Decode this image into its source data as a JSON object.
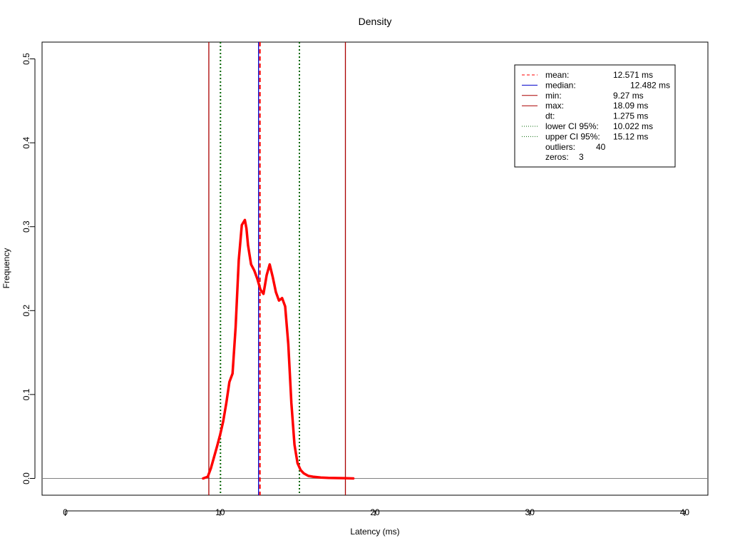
{
  "chart_data": {
    "type": "line",
    "title": "Density",
    "xlabel": "Latency (ms)",
    "ylabel": "Frequency",
    "xlim": [
      -1.5,
      41.5
    ],
    "ylim": [
      -0.02,
      0.52
    ],
    "xticks": [
      0,
      10,
      20,
      30,
      40
    ],
    "xtick_labels": [
      "0",
      "10",
      "20",
      "30",
      "40"
    ],
    "yticks": [
      0.0,
      0.1,
      0.2,
      0.3,
      0.4,
      0.5
    ],
    "ytick_labels": [
      "0.0",
      "0.1",
      "0.2",
      "0.3",
      "0.4",
      "0.5"
    ],
    "grid": false,
    "legend_position": "top-right",
    "colors": {
      "density": "#ff0000",
      "mean": "#ff0000",
      "median": "#0000cc",
      "minmax": "#aa0000",
      "ci": "#006400",
      "baseline": "#808080"
    },
    "series": [
      {
        "x": [
          8.9,
          9.2,
          9.4,
          9.6,
          9.8,
          10.0,
          10.2,
          10.4,
          10.6,
          10.8,
          11.0,
          11.2,
          11.4,
          11.6,
          11.7,
          11.8,
          12.0,
          12.2,
          12.4,
          12.6,
          12.8,
          13.0,
          13.2,
          13.4,
          13.6,
          13.8,
          14.0,
          14.2,
          14.4,
          14.6,
          14.8,
          15.0,
          15.2,
          15.4,
          15.7,
          16.0,
          16.5,
          17.0,
          18.0,
          18.6
        ],
        "values": [
          0.0,
          0.002,
          0.012,
          0.025,
          0.038,
          0.052,
          0.068,
          0.09,
          0.115,
          0.125,
          0.18,
          0.26,
          0.302,
          0.308,
          0.298,
          0.278,
          0.255,
          0.248,
          0.238,
          0.225,
          0.22,
          0.242,
          0.255,
          0.24,
          0.222,
          0.212,
          0.215,
          0.205,
          0.16,
          0.09,
          0.04,
          0.018,
          0.01,
          0.006,
          0.003,
          0.002,
          0.001,
          0.0006,
          0.0003,
          0.0
        ]
      }
    ],
    "vlines": [
      {
        "name": "mean",
        "x": 12.571,
        "style": "dashed",
        "color": "#ff0000"
      },
      {
        "name": "median",
        "x": 12.482,
        "style": "solid",
        "color": "#0000cc"
      },
      {
        "name": "min",
        "x": 9.27,
        "style": "solid",
        "color": "#aa0000"
      },
      {
        "name": "max",
        "x": 18.09,
        "style": "solid",
        "color": "#aa0000"
      },
      {
        "name": "lower-ci",
        "x": 10.022,
        "style": "dotted",
        "color": "#006400"
      },
      {
        "name": "upper-ci",
        "x": 15.12,
        "style": "dotted",
        "color": "#006400"
      }
    ],
    "legend": [
      {
        "label": "mean:",
        "value": "12.571 ms",
        "style": "dashed",
        "color": "#ff0000"
      },
      {
        "label": "median:",
        "value": "12.482 ms",
        "style": "solid",
        "color": "#0000cc"
      },
      {
        "label": "min:",
        "value": "9.27 ms",
        "style": "solid",
        "color": "#aa0000"
      },
      {
        "label": "max:",
        "value": "18.09 ms",
        "style": "solid",
        "color": "#aa0000"
      },
      {
        "label": "dt:",
        "value": "1.275 ms",
        "style": "none",
        "color": ""
      },
      {
        "label": "lower CI 95%:",
        "value": "10.022 ms",
        "style": "dotted",
        "color": "#006400"
      },
      {
        "label": "upper CI 95%:",
        "value": "15.12 ms",
        "style": "dotted",
        "color": "#006400"
      },
      {
        "label": "outliers:",
        "value": "40",
        "style": "none",
        "color": ""
      },
      {
        "label": "zeros:",
        "value": "3",
        "style": "none",
        "color": ""
      }
    ]
  }
}
